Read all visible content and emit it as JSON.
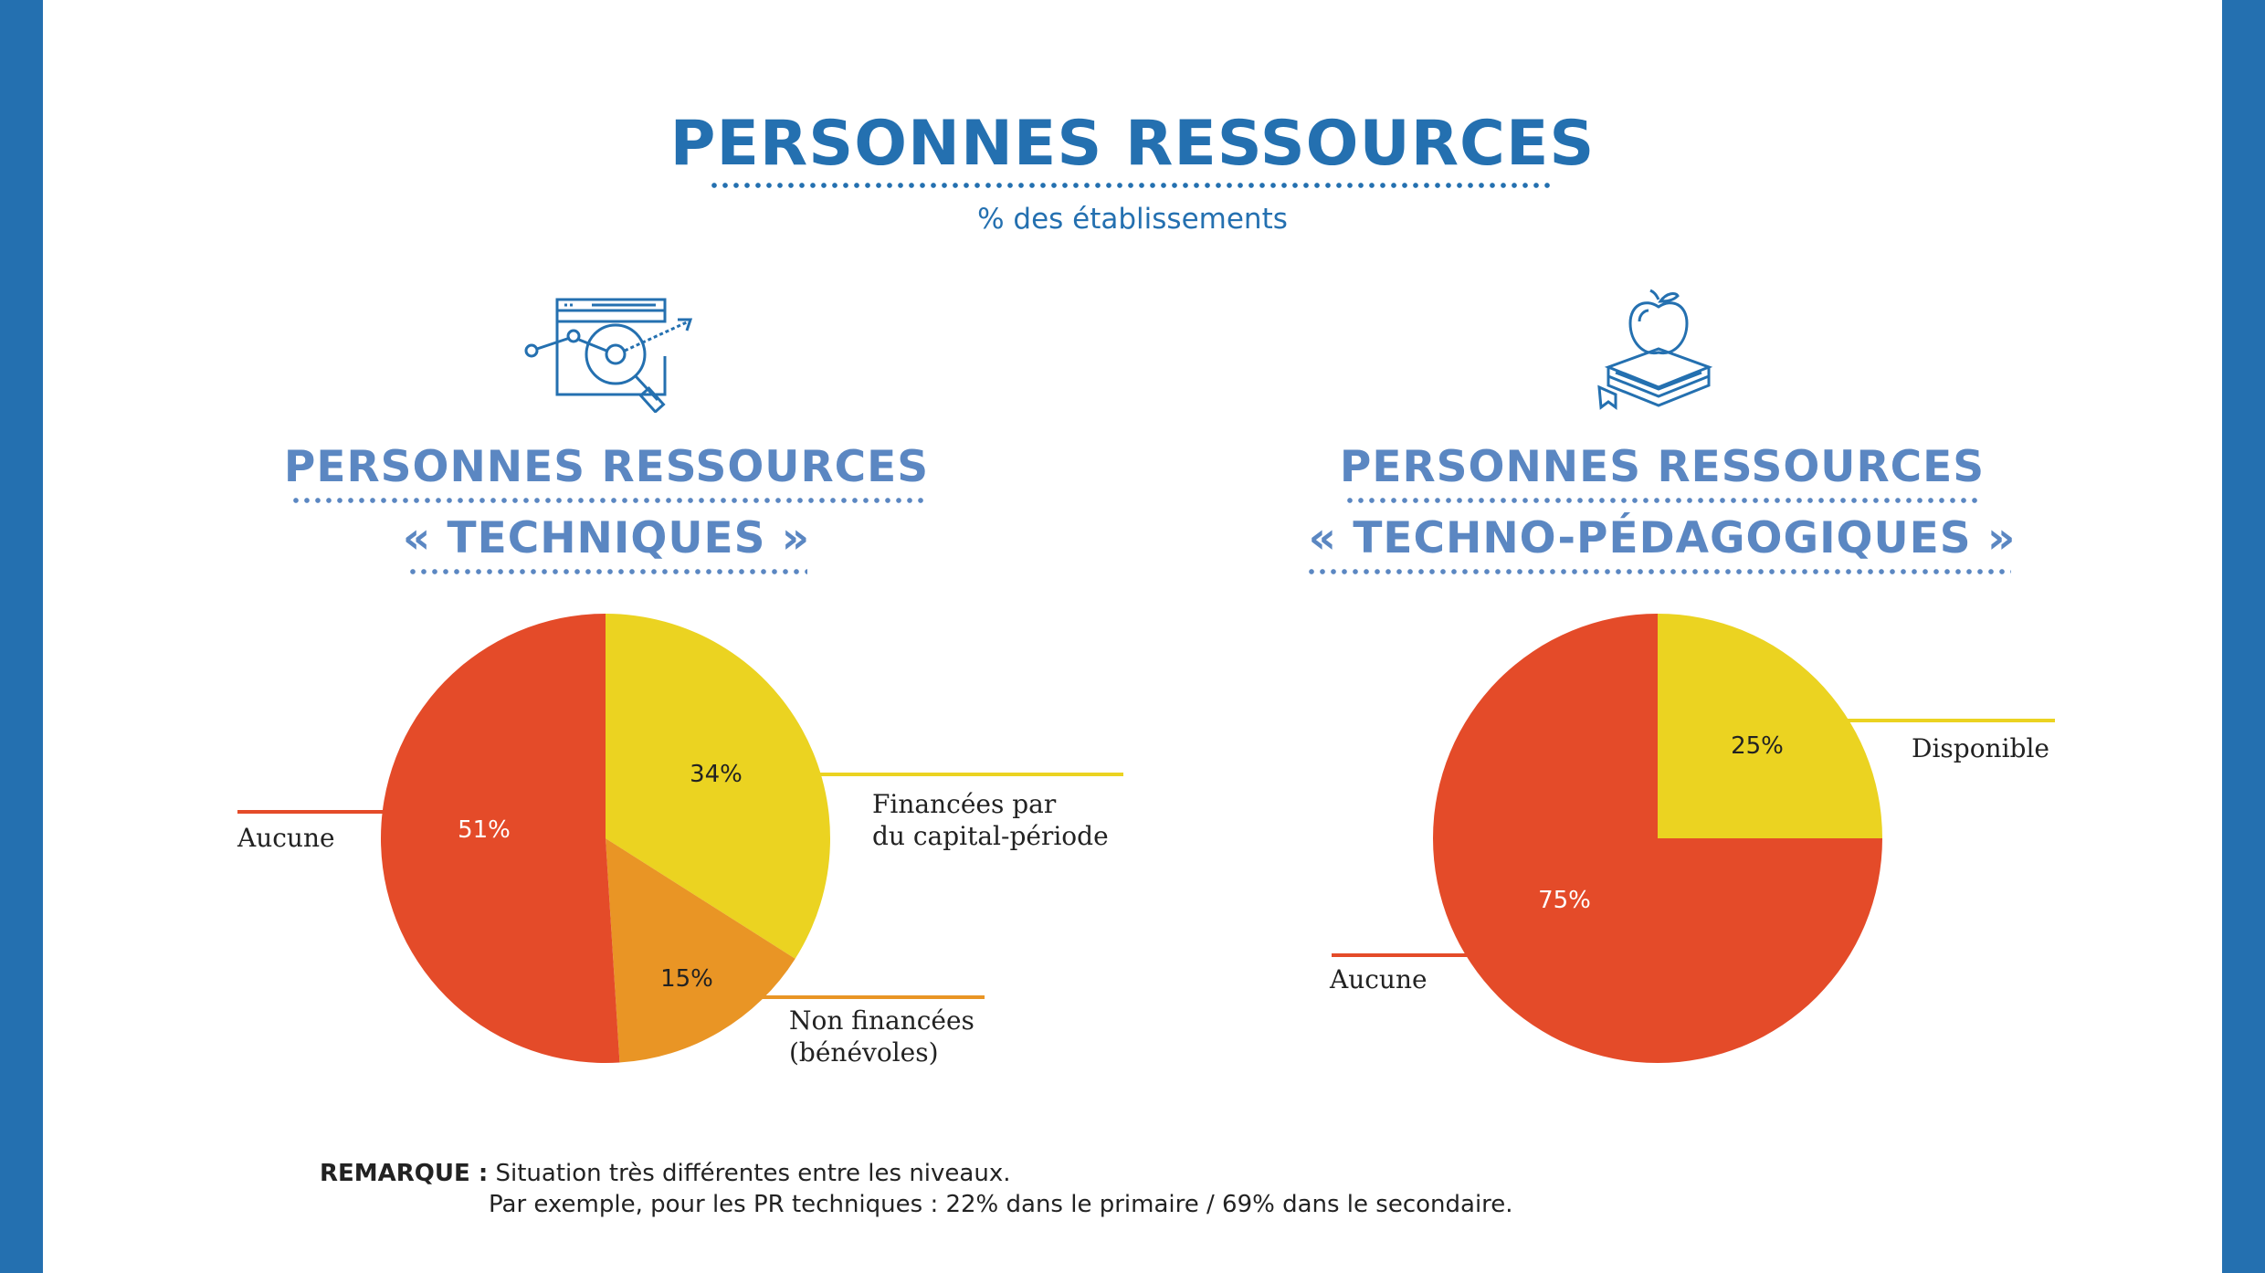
{
  "page": {
    "title": "PERSONNES RESSOURCES",
    "subtitle": "% des établissements",
    "remark_label": "REMARQUE :",
    "remark_line1": "Situation très différentes entre les niveaux.",
    "remark_line2": "Par exemple, pour les PR techniques : 22% dans le primaire / 69% dans le secondaire.",
    "colors": {
      "brand_blue": "#2470b0",
      "section_blue": "#5b87c2"
    }
  },
  "sections": [
    {
      "title_line1": "PERSONNES RESSOURCES",
      "title_line2": "« TECHNIQUES »",
      "icon": "analytics-magnifier-icon"
    },
    {
      "title_line1": "PERSONNES RESSOURCES",
      "title_line2": "« TECHNO-PÉDAGOGIQUES »",
      "icon": "apple-books-icon"
    }
  ],
  "chart_data": [
    {
      "type": "pie",
      "title": "PERSONNES RESSOURCES « TECHNIQUES »",
      "slices": [
        {
          "label": "Financées par du capital-période",
          "label_line1": "Financées par",
          "label_line2": "du capital-période",
          "value": 34,
          "value_label": "34%",
          "color": "#ebd321"
        },
        {
          "label": "Non financées (bénévoles)",
          "label_line1": "Non financées",
          "label_line2": "(bénévoles)",
          "value": 15,
          "value_label": "15%",
          "color": "#e99525"
        },
        {
          "label": "Aucune",
          "label_line1": "Aucune",
          "value": 51,
          "value_label": "51%",
          "color": "#e44b29"
        }
      ]
    },
    {
      "type": "pie",
      "title": "PERSONNES RESSOURCES « TECHNO-PÉDAGOGIQUES »",
      "slices": [
        {
          "label": "Disponible",
          "label_line1": "Disponible",
          "value": 25,
          "value_label": "25%",
          "color": "#ebd321"
        },
        {
          "label": "Aucune",
          "label_line1": "Aucune",
          "value": 75,
          "value_label": "75%",
          "color": "#e44b29"
        }
      ]
    }
  ]
}
